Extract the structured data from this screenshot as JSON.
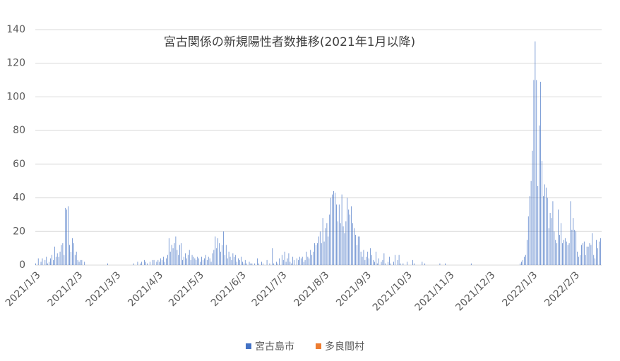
{
  "chart_data": {
    "type": "bar",
    "title": "宮古関係の新規陽性者数推移(2021年1月以降)",
    "categories": [
      "2021/1/3",
      null,
      null,
      null,
      null,
      null,
      null,
      null,
      null,
      null,
      null,
      null,
      null,
      null,
      null,
      null,
      null,
      null,
      null,
      null,
      null,
      null,
      null,
      null,
      null,
      null,
      null,
      null,
      null,
      null,
      null,
      "2021/2/3",
      null,
      null,
      null,
      null,
      null,
      null,
      null,
      null,
      null,
      null,
      null,
      null,
      null,
      null,
      null,
      null,
      null,
      null,
      null,
      null,
      null,
      null,
      null,
      null,
      null,
      null,
      null,
      "2021/3/3",
      null,
      null,
      null,
      null,
      null,
      null,
      null,
      null,
      null,
      null,
      null,
      null,
      null,
      null,
      null,
      null,
      null,
      null,
      null,
      null,
      null,
      null,
      null,
      null,
      null,
      null,
      null,
      null,
      null,
      null,
      "2021/4/3",
      null,
      null,
      null,
      null,
      null,
      null,
      null,
      null,
      null,
      null,
      null,
      null,
      null,
      null,
      null,
      null,
      null,
      null,
      null,
      null,
      null,
      null,
      null,
      null,
      null,
      null,
      null,
      null,
      null,
      "2021/5/3",
      null,
      null,
      null,
      null,
      null,
      null,
      null,
      null,
      null,
      null,
      null,
      null,
      null,
      null,
      null,
      null,
      null,
      null,
      null,
      null,
      null,
      null,
      null,
      null,
      null,
      null,
      null,
      null,
      null,
      null,
      "2021/6/3",
      null,
      null,
      null,
      null,
      null,
      null,
      null,
      null,
      null,
      null,
      null,
      null,
      null,
      null,
      null,
      null,
      null,
      null,
      null,
      null,
      null,
      null,
      null,
      null,
      null,
      null,
      null,
      null,
      null,
      "2021/7/3",
      null,
      null,
      null,
      null,
      null,
      null,
      null,
      null,
      null,
      null,
      null,
      null,
      null,
      null,
      null,
      null,
      null,
      null,
      null,
      null,
      null,
      null,
      null,
      null,
      null,
      null,
      null,
      null,
      null,
      null,
      "2021/8/3",
      null,
      null,
      null,
      null,
      null,
      null,
      null,
      null,
      null,
      null,
      null,
      null,
      null,
      null,
      null,
      null,
      null,
      null,
      null,
      null,
      null,
      null,
      null,
      null,
      null,
      null,
      null,
      null,
      null,
      null,
      "2021/9/3",
      null,
      null,
      null,
      null,
      null,
      null,
      null,
      null,
      null,
      null,
      null,
      null,
      null,
      null,
      null,
      null,
      null,
      null,
      null,
      null,
      null,
      null,
      null,
      null,
      null,
      null,
      null,
      null,
      null,
      "2021/10/3",
      null,
      null,
      null,
      null,
      null,
      null,
      null,
      null,
      null,
      null,
      null,
      null,
      null,
      null,
      null,
      null,
      null,
      null,
      null,
      null,
      null,
      null,
      null,
      null,
      null,
      null,
      null,
      null,
      null,
      null,
      "2021/11/3",
      null,
      null,
      null,
      null,
      null,
      null,
      null,
      null,
      null,
      null,
      null,
      null,
      null,
      null,
      null,
      null,
      null,
      null,
      null,
      null,
      null,
      null,
      null,
      null,
      null,
      null,
      null,
      null,
      null,
      "2021/12/3",
      null,
      null,
      null,
      null,
      null,
      null,
      null,
      null,
      null,
      null,
      null,
      null,
      null,
      null,
      null,
      null,
      null,
      null,
      null,
      null,
      null,
      null,
      null,
      null,
      null,
      null,
      null,
      null,
      null,
      null,
      "2022/1/3",
      null,
      null,
      null,
      null,
      null,
      null,
      null,
      null,
      null,
      null,
      null,
      null,
      null,
      null,
      null,
      null,
      null,
      null,
      null,
      null,
      null,
      null,
      null,
      null,
      null,
      null,
      null,
      null,
      null,
      null,
      "2022/2/3",
      null,
      null,
      null,
      null,
      null,
      null,
      null,
      null,
      null,
      null,
      null,
      null,
      null,
      null,
      null,
      null,
      null,
      null,
      null
    ],
    "series": [
      {
        "name": "宮古島市",
        "color": "#4472c4",
        "values": [
          1,
          0,
          4,
          0,
          2,
          4,
          0,
          3,
          5,
          1,
          2,
          4,
          6,
          3,
          11,
          5,
          7,
          5,
          8,
          12,
          13,
          6,
          34,
          33,
          35,
          12,
          8,
          16,
          13,
          6,
          8,
          3,
          2,
          3,
          3,
          0,
          2,
          0,
          0,
          0,
          0,
          0,
          0,
          0,
          0,
          0,
          0,
          0,
          0,
          0,
          0,
          0,
          0,
          1,
          0,
          0,
          0,
          0,
          0,
          0,
          0,
          0,
          0,
          0,
          0,
          0,
          0,
          0,
          0,
          0,
          0,
          0,
          1,
          0,
          0,
          2,
          0,
          1,
          2,
          0,
          3,
          2,
          1,
          0,
          2,
          0,
          3,
          3,
          0,
          2,
          3,
          2,
          4,
          3,
          5,
          2,
          4,
          6,
          16,
          8,
          12,
          10,
          13,
          17,
          9,
          6,
          12,
          13,
          3,
          5,
          7,
          4,
          6,
          9,
          3,
          6,
          5,
          4,
          3,
          5,
          4,
          2,
          5,
          3,
          4,
          6,
          3,
          5,
          4,
          2,
          7,
          9,
          17,
          10,
          16,
          13,
          8,
          12,
          20,
          6,
          12,
          4,
          8,
          5,
          3,
          7,
          5,
          6,
          2,
          4,
          3,
          5,
          2,
          1,
          3,
          1,
          0,
          2,
          1,
          1,
          0,
          1,
          0,
          4,
          1,
          0,
          2,
          1,
          0,
          0,
          3,
          0,
          1,
          0,
          10,
          1,
          0,
          2,
          1,
          4,
          0,
          6,
          3,
          8,
          2,
          4,
          7,
          2,
          1,
          5,
          3,
          0,
          4,
          3,
          5,
          4,
          5,
          2,
          3,
          8,
          5,
          4,
          9,
          6,
          8,
          13,
          12,
          13,
          17,
          20,
          13,
          28,
          14,
          22,
          25,
          17,
          30,
          40,
          42,
          44,
          43,
          36,
          26,
          36,
          25,
          42,
          23,
          19,
          26,
          40,
          33,
          30,
          35,
          25,
          22,
          18,
          12,
          17,
          17,
          8,
          5,
          9,
          3,
          5,
          8,
          4,
          10,
          6,
          3,
          2,
          8,
          1,
          4,
          0,
          2,
          3,
          7,
          1,
          0,
          2,
          5,
          1,
          0,
          2,
          6,
          0,
          3,
          6,
          1,
          0,
          1,
          0,
          0,
          2,
          0,
          0,
          0,
          3,
          1,
          0,
          0,
          0,
          0,
          0,
          2,
          0,
          1,
          0,
          0,
          0,
          0,
          0,
          0,
          0,
          0,
          0,
          0,
          1,
          0,
          0,
          0,
          1,
          0,
          0,
          0,
          0,
          0,
          0,
          0,
          0,
          0,
          0,
          0,
          0,
          0,
          0,
          0,
          0,
          0,
          0,
          1,
          0,
          0,
          0,
          0,
          0,
          0,
          0,
          0,
          0,
          0,
          0,
          0,
          0,
          0,
          0,
          0,
          0,
          0,
          0,
          0,
          0,
          0,
          0,
          0,
          0,
          0,
          0,
          0,
          0,
          0,
          0,
          0,
          0,
          0,
          0,
          1,
          2,
          3,
          5,
          6,
          15,
          29,
          41,
          50,
          68,
          110,
          133,
          110,
          47,
          83,
          109,
          62,
          41,
          48,
          46,
          40,
          22,
          31,
          28,
          38,
          20,
          15,
          13,
          33,
          18,
          25,
          13,
          15,
          16,
          14,
          12,
          13,
          38,
          21,
          28,
          21,
          20,
          8,
          5,
          6,
          12,
          13,
          14,
          6,
          11,
          11,
          13,
          12,
          19,
          6,
          4,
          15,
          10,
          14,
          16
        ]
      },
      {
        "name": "多良間村",
        "color": "#ed7d31",
        "values": [
          0,
          0,
          0,
          0,
          0,
          0,
          0,
          0,
          0,
          0,
          0,
          0,
          0,
          0,
          0,
          0,
          0,
          0,
          0,
          0,
          0,
          0,
          0,
          0,
          0,
          0,
          0,
          0,
          0,
          0,
          0,
          0,
          0,
          0,
          0,
          0,
          0,
          0,
          0,
          0,
          0,
          0,
          0,
          0,
          0,
          0,
          0,
          0,
          0,
          0,
          0,
          0,
          0,
          0,
          0,
          0,
          0,
          0,
          0,
          0,
          0,
          0,
          0,
          0,
          0,
          0,
          0,
          0,
          0,
          0,
          0,
          0,
          0,
          0,
          0,
          0,
          0,
          0,
          0,
          0,
          0,
          0,
          0,
          0,
          0,
          0,
          0,
          0,
          0,
          0,
          0,
          0,
          0,
          0,
          0,
          0,
          0,
          0,
          0,
          0,
          0,
          0,
          0,
          0,
          0,
          0,
          0,
          0,
          0,
          0,
          0,
          0,
          0,
          0,
          0,
          0,
          0,
          0,
          0,
          0,
          0,
          0,
          0,
          0,
          0,
          0,
          0,
          0,
          0,
          0,
          0,
          0,
          0,
          0,
          0,
          0,
          0,
          0,
          0,
          0,
          0,
          0,
          0,
          0,
          0,
          0,
          0,
          0,
          0,
          0,
          0,
          0,
          0,
          0,
          0,
          0,
          0,
          0,
          0,
          0,
          0,
          0,
          0,
          0,
          0,
          0,
          0,
          0,
          0,
          0,
          0,
          0,
          0,
          0,
          0,
          0,
          0,
          0,
          0,
          0,
          0,
          0,
          0,
          0,
          0,
          0,
          0,
          0,
          0,
          0,
          0,
          0,
          0,
          0,
          0,
          0,
          0,
          0,
          0,
          0,
          0,
          0,
          0,
          0,
          0,
          0,
          0,
          0,
          0,
          0,
          0,
          0,
          0,
          0,
          0,
          0,
          0,
          0,
          0,
          0,
          0,
          0,
          0,
          0,
          0,
          0,
          0,
          0,
          0,
          0,
          0,
          0,
          0,
          0,
          0,
          0,
          0,
          0,
          0,
          0,
          0,
          0,
          0,
          0,
          0,
          0,
          0,
          0,
          0,
          0,
          0,
          0,
          0,
          0,
          0,
          0,
          0,
          0,
          0,
          0,
          0,
          0,
          0,
          0,
          0,
          0,
          0,
          0,
          0,
          0,
          0,
          0,
          0,
          0,
          0,
          0,
          0,
          0,
          0,
          0,
          0,
          0,
          0,
          0,
          0,
          0,
          0,
          0,
          0,
          0,
          0,
          0,
          0,
          0,
          0,
          0,
          0,
          0,
          0,
          0,
          0,
          0,
          0,
          0,
          0,
          0,
          0,
          0,
          0,
          0,
          0,
          0,
          0,
          0,
          0,
          0,
          0,
          0,
          0,
          0,
          0,
          0,
          0,
          0,
          0,
          0,
          0,
          0,
          0,
          0,
          0,
          0,
          0,
          0,
          0,
          0,
          0,
          0,
          0,
          0,
          0,
          0,
          0,
          0,
          0,
          0,
          0,
          0,
          0,
          0,
          0,
          0,
          0,
          0,
          0,
          0,
          0,
          0,
          0,
          0,
          0,
          0,
          0,
          0,
          0,
          0,
          0,
          0,
          0,
          0,
          0,
          0,
          0,
          0,
          0,
          0,
          0,
          0,
          0,
          0,
          0,
          0,
          0,
          0,
          0,
          0,
          0,
          0,
          0,
          0,
          0,
          0,
          0,
          0,
          0,
          0,
          0,
          0,
          0,
          0,
          0,
          0,
          0,
          0,
          0,
          0,
          0,
          0,
          0,
          0,
          0,
          0,
          0,
          0,
          0,
          0
        ]
      }
    ],
    "ylim": [
      0,
      140
    ],
    "yticks": [
      0,
      20,
      40,
      60,
      80,
      100,
      120,
      140
    ],
    "grid": true,
    "legend": "bottom"
  }
}
